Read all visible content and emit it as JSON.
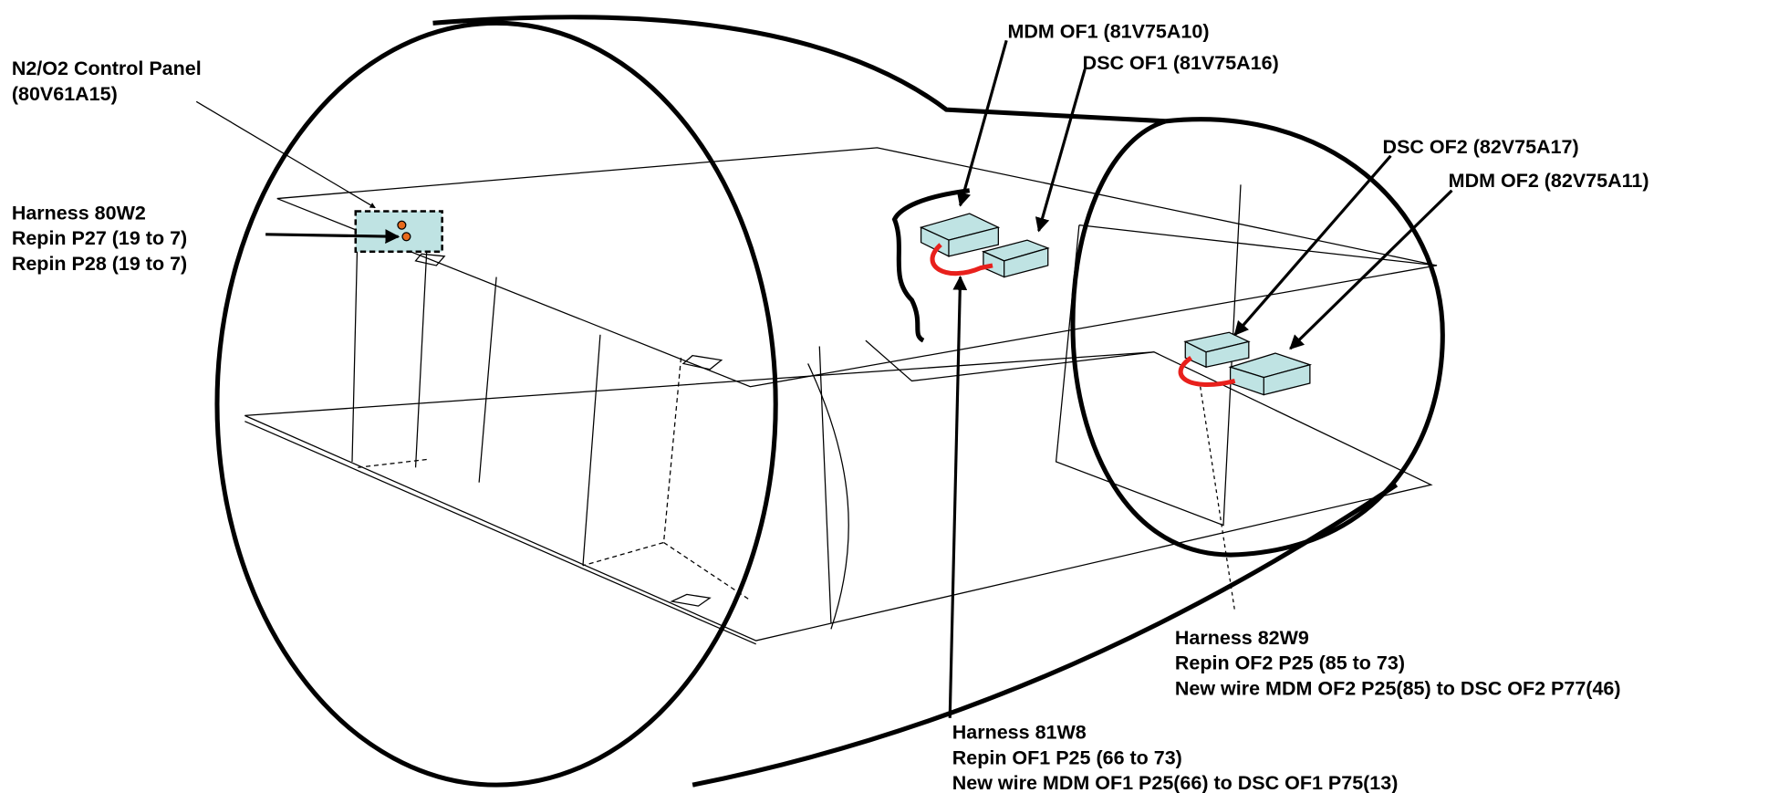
{
  "callouts": [
    {
      "lines": [
        "N2/O2 Control Panel",
        "(80V61A15)"
      ]
    },
    {
      "lines": [
        "Harness 80W2",
        "Repin P27 (19 to 7)",
        "Repin P28 (19 to 7)"
      ]
    },
    {
      "lines": [
        "MDM OF1 (81V75A10)"
      ]
    },
    {
      "lines": [
        "DSC OF1 (81V75A16)"
      ]
    },
    {
      "lines": [
        "DSC OF2 (82V75A17)"
      ]
    },
    {
      "lines": [
        "MDM OF2 (82V75A11)"
      ]
    },
    {
      "lines": [
        "Harness 82W9",
        "Repin OF2 P25 (85 to 73)",
        "New wire MDM OF2 P25(85) to DSC OF2 P77(46)"
      ]
    },
    {
      "lines": [
        "Harness 81W8",
        "Repin OF1 P25 (66 to 73)",
        "New wire MDM OF1 P25(66) to DSC OF1 P75(13)"
      ]
    }
  ]
}
